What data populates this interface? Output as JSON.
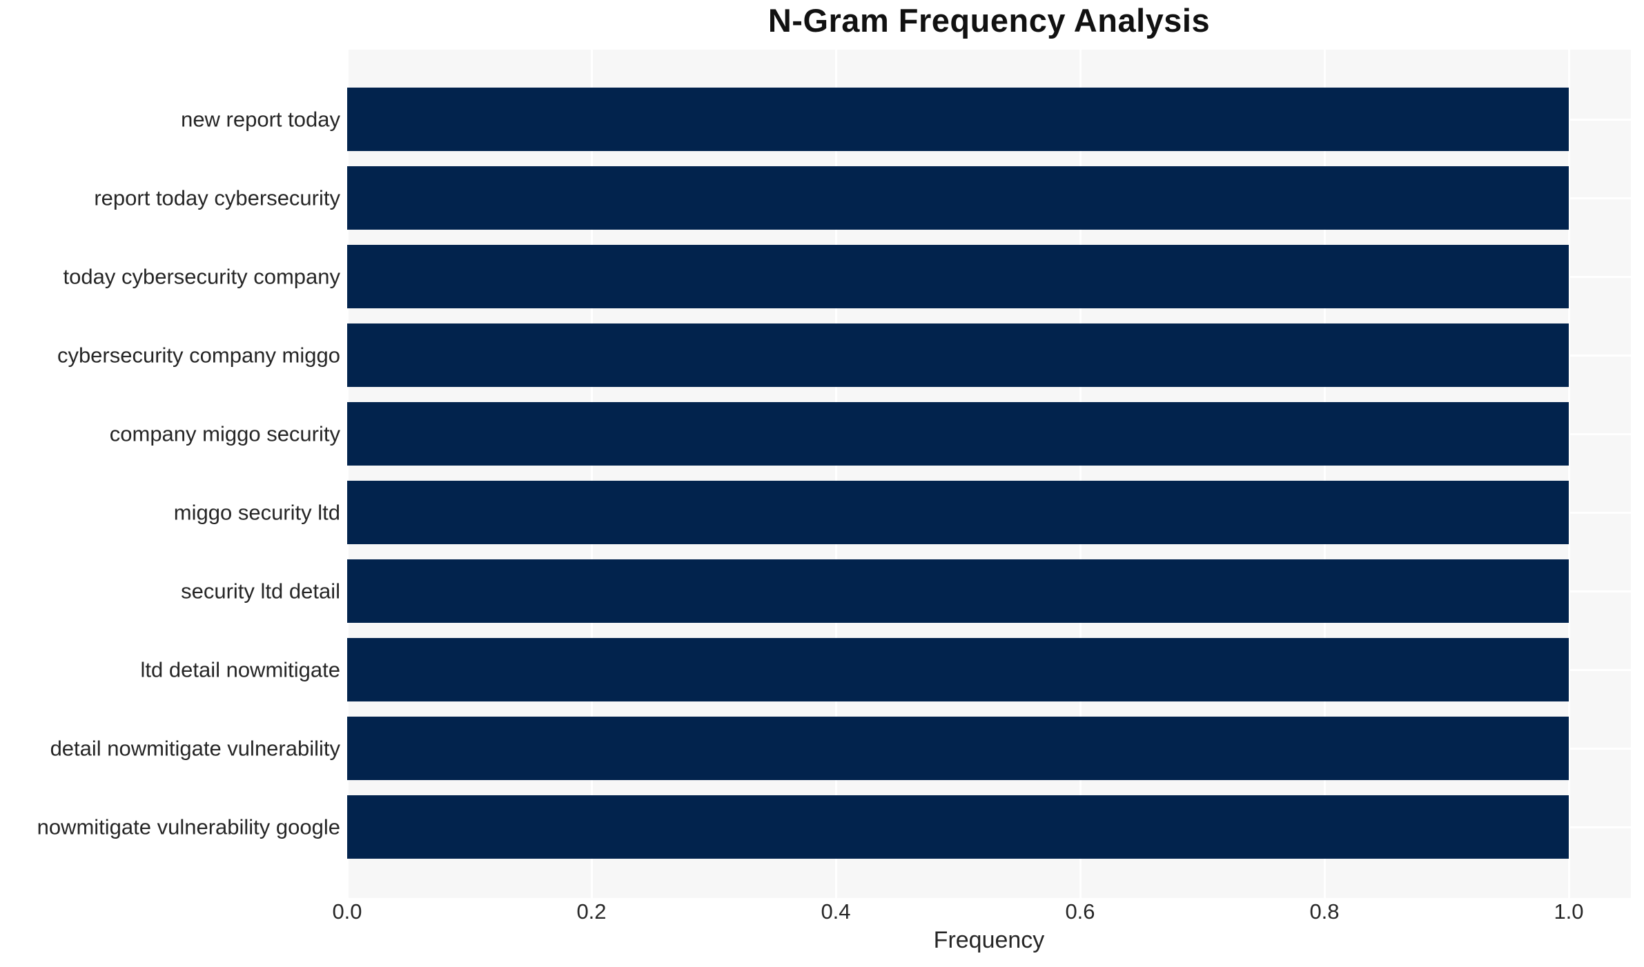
{
  "chart_data": {
    "type": "bar",
    "orientation": "horizontal",
    "title": "N-Gram Frequency Analysis",
    "xlabel": "Frequency",
    "ylabel": "",
    "categories": [
      "new report today",
      "report today cybersecurity",
      "today cybersecurity company",
      "cybersecurity company miggo",
      "company miggo security",
      "miggo security ltd",
      "security ltd detail",
      "ltd detail nowmitigate",
      "detail nowmitigate vulnerability",
      "nowmitigate vulnerability google"
    ],
    "values": [
      1.0,
      1.0,
      1.0,
      1.0,
      1.0,
      1.0,
      1.0,
      1.0,
      1.0,
      1.0
    ],
    "xlim": [
      0.0,
      1.051
    ],
    "xticks": [
      0.0,
      0.2,
      0.4,
      0.6,
      0.8,
      1.0
    ],
    "xtick_labels": [
      "0.0",
      "0.2",
      "0.4",
      "0.6",
      "0.8",
      "1.0"
    ],
    "grid": true,
    "legend": false,
    "colors": {
      "bar": "#02234d",
      "plot_background": "#f7f7f7",
      "figure_background": "#ffffff",
      "gridline": "#ffffff",
      "text": "#262626"
    }
  }
}
